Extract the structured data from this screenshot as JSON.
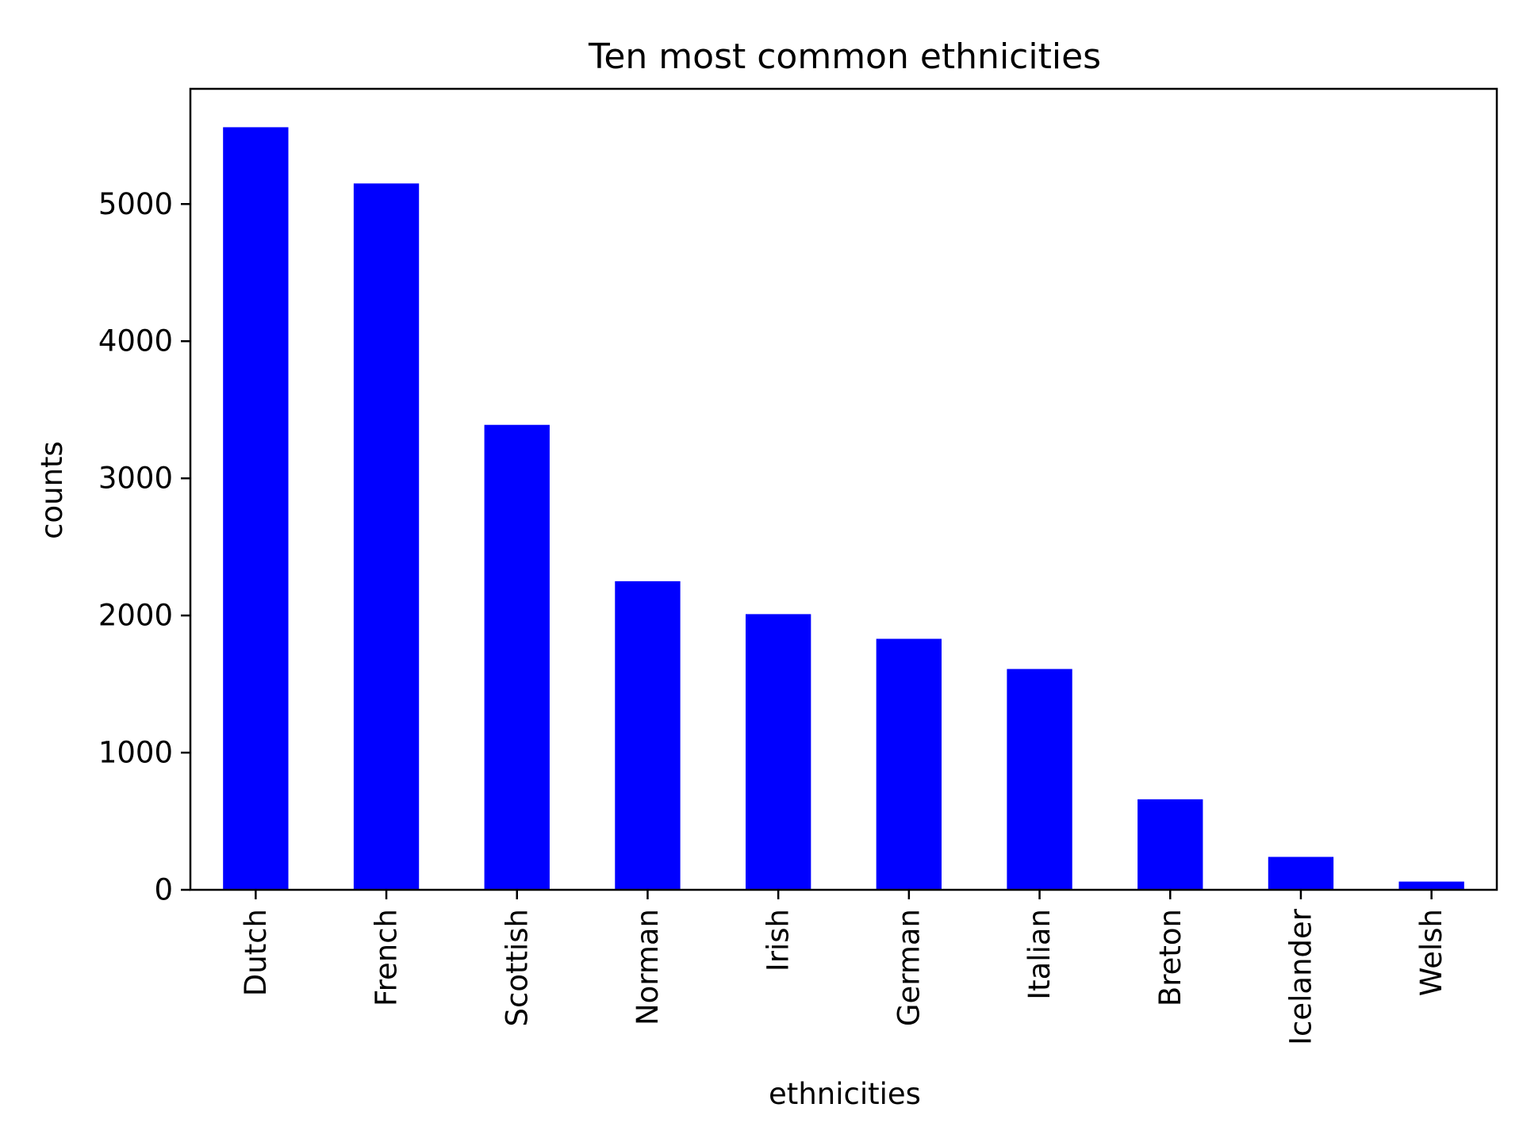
{
  "chart_data": {
    "type": "bar",
    "title": "Ten most common ethnicities",
    "xlabel": "ethnicities",
    "ylabel": "counts",
    "categories": [
      "Dutch",
      "French",
      "Scottish",
      "Norman",
      "Irish",
      "German",
      "Italian",
      "Breton",
      "Icelander",
      "Welsh"
    ],
    "values": [
      5560,
      5150,
      3390,
      2250,
      2010,
      1830,
      1610,
      660,
      240,
      60
    ],
    "ylim": [
      0,
      5840
    ],
    "yticks": [
      0,
      1000,
      2000,
      3000,
      4000,
      5000
    ],
    "bar_color": "#0000ff",
    "grid": false,
    "legend": false
  }
}
